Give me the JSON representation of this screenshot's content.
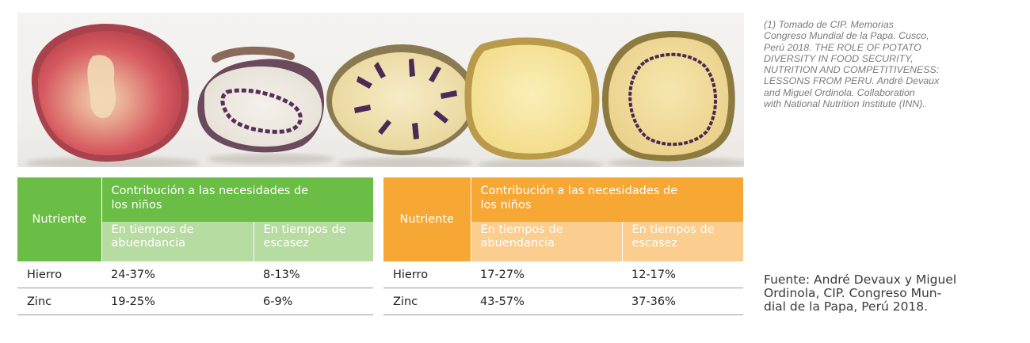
{
  "photo": {
    "subject": "potatoes-cross-section"
  },
  "caption": {
    "text": "(1) Tomado de CIP. Memorias\nCongreso Mundial de la Papa. Cusco,\nPerú 2018. THE ROLE OF POTATO\nDIVERSITY IN FOOD SECURITY,\nNUTRITION AND COMPETITIVENESS:\nLESSONS FROM PERU. André Devaux\nand Miguel Ordinola. Collaboration\nwith National Nutrition Institute (INN)."
  },
  "source": {
    "text": "Fuente: André Devaux y Miguel\nOrdinola, CIP. Congreso Mun-\ndial de la Papa, Perú 2018."
  },
  "colors": {
    "green_header": "#6abd45",
    "green_sub": "#b7dca2",
    "orange_header": "#f7a733",
    "orange_sub": "#fbcd8f"
  },
  "table_green": {
    "nutrient_header": "Nutriente",
    "main_header": "Contribución a las necesidades de\nlos niños",
    "sub_headers": [
      "En tiempos de\nabuendancia",
      "En tiempos de\nescasez"
    ],
    "rows": [
      {
        "nutrient": "Hierro",
        "abundance": "24-37%",
        "scarcity": "8-13%"
      },
      {
        "nutrient": "Zinc",
        "abundance": "19-25%",
        "scarcity": "6-9%"
      }
    ]
  },
  "table_orange": {
    "nutrient_header": "Nutriente",
    "main_header": "Contribución a las necesidades de\nlos niños",
    "sub_headers": [
      "En tiempos de\nabuendancia",
      "En tiempos de\nescasez"
    ],
    "rows": [
      {
        "nutrient": "Hierro",
        "abundance": "17-27%",
        "scarcity": "12-17%"
      },
      {
        "nutrient": "Zinc",
        "abundance": "43-57%",
        "scarcity": "37-36%"
      }
    ]
  }
}
